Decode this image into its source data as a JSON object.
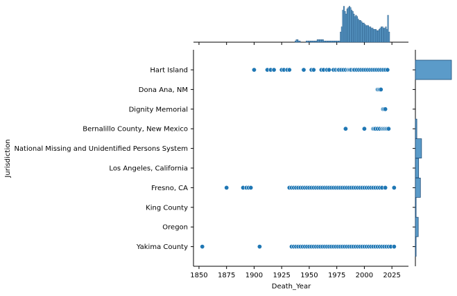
{
  "chart_data": {
    "type": "scatter",
    "title": "",
    "xlabel": "Death_Year",
    "ylabel": "Jurisdiction",
    "xlim": [
      1845,
      2040
    ],
    "xticks": [
      1850,
      1875,
      1900,
      1925,
      1950,
      1975,
      2000,
      2025
    ],
    "categories": [
      "Hart Island",
      "Dona Ana, NM",
      "Dignity Memorial",
      "Bernalillo County, New Mexico",
      "National Missing and Unidentified Persons System",
      "Los Angeles, California",
      "Fresno, CA",
      "King County",
      "Oregon",
      "Yakima County"
    ],
    "points": [
      {
        "category": "Hart Island",
        "x": [
          1900,
          1912,
          1915,
          1918,
          1925,
          1927,
          1930,
          1932,
          1945,
          1952,
          1954,
          1961,
          1963,
          1966,
          1968,
          1972,
          1974,
          1976,
          1977,
          1979,
          1981,
          1983,
          1985,
          1986,
          1987,
          1988,
          1990,
          1991,
          1993,
          1995,
          1997,
          1999,
          2001,
          2003,
          2005,
          2007,
          2009,
          2011,
          2013,
          2015,
          2017,
          2019,
          2021
        ]
      },
      {
        "category": "Dona Ana, NM",
        "x": [
          2012,
          2013,
          2014,
          2015
        ]
      },
      {
        "category": "Dignity Memorial",
        "x": [
          2017,
          2018,
          2019
        ]
      },
      {
        "category": "Bernalillo County, New Mexico",
        "x": [
          1983,
          2000,
          2008,
          2009,
          2010,
          2012,
          2014,
          2016,
          2017,
          2018,
          2019,
          2020,
          2021,
          2022
        ]
      },
      {
        "category": "National Missing and Unidentified Persons System",
        "x": []
      },
      {
        "category": "Los Angeles, California",
        "x": []
      },
      {
        "category": "Fresno, CA",
        "x": [
          1875,
          1890,
          1893,
          1895,
          1897,
          1932,
          1934,
          1936,
          1938,
          1940,
          1942,
          1944,
          1946,
          1948,
          1950,
          1952,
          1954,
          1956,
          1958,
          1960,
          1962,
          1964,
          1966,
          1968,
          1970,
          1972,
          1974,
          1976,
          1978,
          1980,
          1982,
          1984,
          1986,
          1988,
          1990,
          1992,
          1994,
          1996,
          1998,
          2000,
          2002,
          2004,
          2006,
          2008,
          2010,
          2012,
          2014,
          2016,
          2019,
          2027
        ]
      },
      {
        "category": "King County",
        "x": []
      },
      {
        "category": "Oregon",
        "x": []
      },
      {
        "category": "Yakima County",
        "x": [
          1853,
          1905,
          1934,
          1936,
          1938,
          1940,
          1942,
          1944,
          1946,
          1948,
          1950,
          1952,
          1954,
          1956,
          1958,
          1960,
          1962,
          1964,
          1966,
          1968,
          1970,
          1972,
          1974,
          1976,
          1978,
          1980,
          1982,
          1984,
          1986,
          1988,
          1990,
          1992,
          1994,
          1996,
          1998,
          2000,
          2002,
          2004,
          2006,
          2008,
          2010,
          2012,
          2014,
          2016,
          2018,
          2020,
          2022,
          2024,
          2027
        ]
      }
    ],
    "marginal_x": {
      "type": "histogram",
      "bin_start": 1850,
      "bin_width": 1,
      "counts_by_year": {
        "1937": 1,
        "1938": 2,
        "1939": 2,
        "1940": 1,
        "1941": 1,
        "1947": 1,
        "1948": 1,
        "1949": 1,
        "1950": 1,
        "1951": 1,
        "1952": 1,
        "1953": 1,
        "1954": 1,
        "1955": 1,
        "1956": 1,
        "1957": 2,
        "1958": 2,
        "1959": 2,
        "1960": 2,
        "1961": 2,
        "1962": 2,
        "1963": 1,
        "1964": 1,
        "1965": 1,
        "1966": 1,
        "1967": 1,
        "1968": 1,
        "1969": 1,
        "1970": 1,
        "1971": 1,
        "1972": 1,
        "1973": 1,
        "1974": 1,
        "1975": 1,
        "1976": 1,
        "1977": 1,
        "1978": 8,
        "1979": 12,
        "1980": 25,
        "1981": 28,
        "1982": 24,
        "1983": 22,
        "1984": 26,
        "1985": 27,
        "1986": 28,
        "1987": 27,
        "1988": 25,
        "1989": 24,
        "1990": 22,
        "1991": 20,
        "1992": 21,
        "1993": 20,
        "1994": 18,
        "1995": 17,
        "1996": 17,
        "1997": 16,
        "1998": 15,
        "1999": 15,
        "2000": 14,
        "2001": 13,
        "2002": 13,
        "2003": 13,
        "2004": 12,
        "2005": 12,
        "2006": 11,
        "2007": 11,
        "2008": 10,
        "2009": 10,
        "2010": 10,
        "2011": 9,
        "2012": 9,
        "2013": 10,
        "2014": 11,
        "2015": 12,
        "2016": 12,
        "2017": 11,
        "2018": 11,
        "2019": 12,
        "2020": 10,
        "2021": 21,
        "2022": 8
      }
    },
    "marginal_y": {
      "type": "histogram",
      "relative_counts": [
        1.0,
        0.0,
        0.0,
        0.04,
        0.17,
        0.09,
        0.14,
        0.02,
        0.08,
        0.02
      ]
    },
    "grid": false,
    "legend": "none",
    "colors": {
      "point_fill": "#1f77b4",
      "point_edge": "#ffffff",
      "hist_fill": "#5b9bc9",
      "hist_edge": "#1f4e79",
      "axis": "#000000",
      "text": "#000000",
      "background": "#ffffff"
    }
  }
}
